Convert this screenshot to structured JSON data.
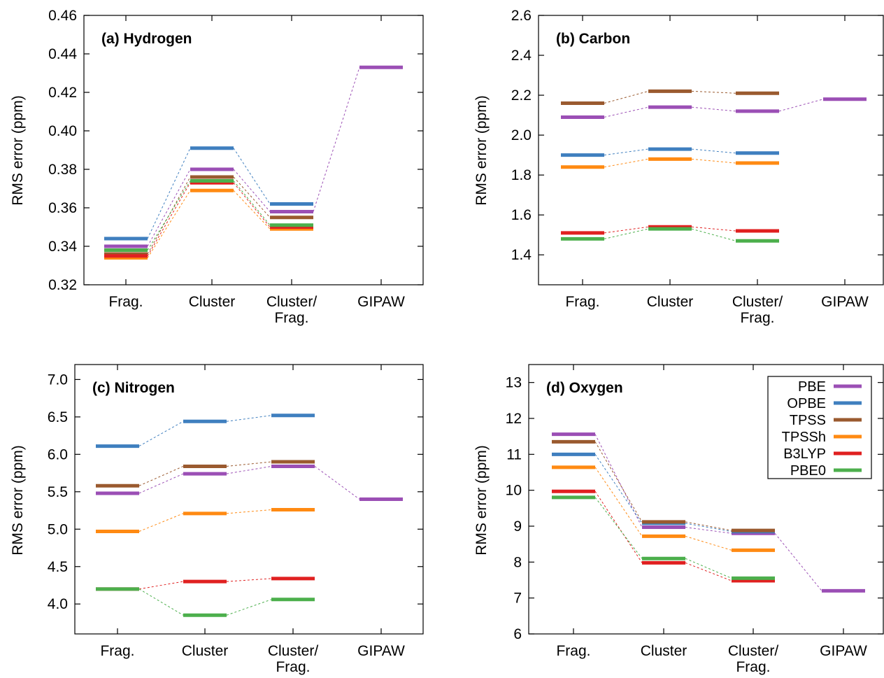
{
  "series_colors": {
    "PBE": "#9b4fb5",
    "OPBE": "#3f7fbf",
    "TPSS": "#9a5a2f",
    "TPSSh": "#ff8a12",
    "B3LYP": "#e02020",
    "PBE0": "#4caf4c"
  },
  "legend": {
    "position": "top-right of panel (d)",
    "entries": [
      "PBE",
      "OPBE",
      "TPSS",
      "TPSSh",
      "B3LYP",
      "PBE0"
    ]
  },
  "chart_data": [
    {
      "type": "line",
      "title": "(a) Hydrogen",
      "ylabel": "RMS error (ppm)",
      "xlabel": "",
      "categories": [
        "Frag.",
        "Cluster",
        "Cluster/ Frag.",
        "GIPAW"
      ],
      "category_lines": [
        [
          "Frag."
        ],
        [
          "Cluster"
        ],
        [
          "Cluster/",
          "Frag."
        ],
        [
          "GIPAW"
        ]
      ],
      "ylim": [
        0.32,
        0.46
      ],
      "yticks": [
        0.32,
        0.34,
        0.36,
        0.38,
        0.4,
        0.42,
        0.44,
        0.46
      ],
      "ytick_labels": [
        "0.32",
        "0.34",
        "0.36",
        "0.38",
        "0.40",
        "0.42",
        "0.44",
        "0.46"
      ],
      "grid": false,
      "series": [
        {
          "name": "PBE",
          "values": [
            0.34,
            0.38,
            0.358,
            0.433
          ]
        },
        {
          "name": "OPBE",
          "values": [
            0.344,
            0.391,
            0.362,
            null
          ]
        },
        {
          "name": "TPSS",
          "values": [
            0.336,
            0.376,
            0.355,
            null
          ]
        },
        {
          "name": "TPSSh",
          "values": [
            0.334,
            0.369,
            0.349,
            null
          ]
        },
        {
          "name": "B3LYP",
          "values": [
            0.335,
            0.373,
            0.35,
            null
          ]
        },
        {
          "name": "PBE0",
          "values": [
            0.338,
            0.374,
            0.351,
            null
          ]
        }
      ]
    },
    {
      "type": "line",
      "title": "(b) Carbon",
      "ylabel": "RMS error (ppm)",
      "xlabel": "",
      "categories": [
        "Frag.",
        "Cluster",
        "Cluster/ Frag.",
        "GIPAW"
      ],
      "category_lines": [
        [
          "Frag."
        ],
        [
          "Cluster"
        ],
        [
          "Cluster/",
          "Frag."
        ],
        [
          "GIPAW"
        ]
      ],
      "ylim": [
        1.25,
        2.6
      ],
      "yticks": [
        1.4,
        1.6,
        1.8,
        2.0,
        2.2,
        2.4,
        2.6
      ],
      "ytick_labels": [
        "1.4",
        "1.6",
        "1.8",
        "2.0",
        "2.2",
        "2.4",
        "2.6"
      ],
      "grid": false,
      "series": [
        {
          "name": "PBE",
          "values": [
            2.09,
            2.14,
            2.12,
            2.18
          ]
        },
        {
          "name": "OPBE",
          "values": [
            1.9,
            1.93,
            1.91,
            null
          ]
        },
        {
          "name": "TPSS",
          "values": [
            2.16,
            2.22,
            2.21,
            null
          ]
        },
        {
          "name": "TPSSh",
          "values": [
            1.84,
            1.88,
            1.86,
            null
          ]
        },
        {
          "name": "B3LYP",
          "values": [
            1.51,
            1.54,
            1.52,
            null
          ]
        },
        {
          "name": "PBE0",
          "values": [
            1.48,
            1.53,
            1.47,
            null
          ]
        }
      ]
    },
    {
      "type": "line",
      "title": "(c) Nitrogen",
      "ylabel": "RMS error (ppm)",
      "xlabel": "",
      "categories": [
        "Frag.",
        "Cluster",
        "Cluster/ Frag.",
        "GIPAW"
      ],
      "category_lines": [
        [
          "Frag."
        ],
        [
          "Cluster"
        ],
        [
          "Cluster/",
          "Frag."
        ],
        [
          "GIPAW"
        ]
      ],
      "ylim": [
        3.6,
        7.2
      ],
      "yticks": [
        4.0,
        4.5,
        5.0,
        5.5,
        6.0,
        6.5,
        7.0
      ],
      "ytick_labels": [
        "4.0",
        "4.5",
        "5.0",
        "5.5",
        "6.0",
        "6.5",
        "7.0"
      ],
      "grid": false,
      "series": [
        {
          "name": "PBE",
          "values": [
            5.48,
            5.74,
            5.84,
            5.4
          ]
        },
        {
          "name": "OPBE",
          "values": [
            6.11,
            6.44,
            6.52,
            null
          ]
        },
        {
          "name": "TPSS",
          "values": [
            5.58,
            5.84,
            5.9,
            null
          ]
        },
        {
          "name": "TPSSh",
          "values": [
            4.97,
            5.21,
            5.26,
            null
          ]
        },
        {
          "name": "B3LYP",
          "values": [
            4.2,
            4.3,
            4.34,
            null
          ]
        },
        {
          "name": "PBE0",
          "values": [
            4.2,
            3.85,
            4.06,
            null
          ]
        }
      ]
    },
    {
      "type": "line",
      "title": "(d) Oxygen",
      "ylabel": "RMS error (ppm)",
      "xlabel": "",
      "categories": [
        "Frag.",
        "Cluster",
        "Cluster/ Frag.",
        "GIPAW"
      ],
      "category_lines": [
        [
          "Frag."
        ],
        [
          "Cluster"
        ],
        [
          "Cluster/",
          "Frag."
        ],
        [
          "GIPAW"
        ]
      ],
      "ylim": [
        6,
        13.5
      ],
      "yticks": [
        6,
        7,
        8,
        9,
        10,
        11,
        12,
        13
      ],
      "ytick_labels": [
        "6",
        "7",
        "8",
        "9",
        "10",
        "11",
        "12",
        "13"
      ],
      "grid": false,
      "legend": true,
      "series": [
        {
          "name": "PBE",
          "values": [
            11.56,
            8.97,
            8.8,
            7.2
          ]
        },
        {
          "name": "OPBE",
          "values": [
            11.0,
            9.08,
            8.85,
            null
          ]
        },
        {
          "name": "TPSS",
          "values": [
            11.35,
            9.12,
            8.88,
            null
          ]
        },
        {
          "name": "TPSSh",
          "values": [
            10.64,
            8.72,
            8.33,
            null
          ]
        },
        {
          "name": "B3LYP",
          "values": [
            9.97,
            7.98,
            7.48,
            null
          ]
        },
        {
          "name": "PBE0",
          "values": [
            9.8,
            8.1,
            7.55,
            null
          ]
        }
      ]
    }
  ]
}
